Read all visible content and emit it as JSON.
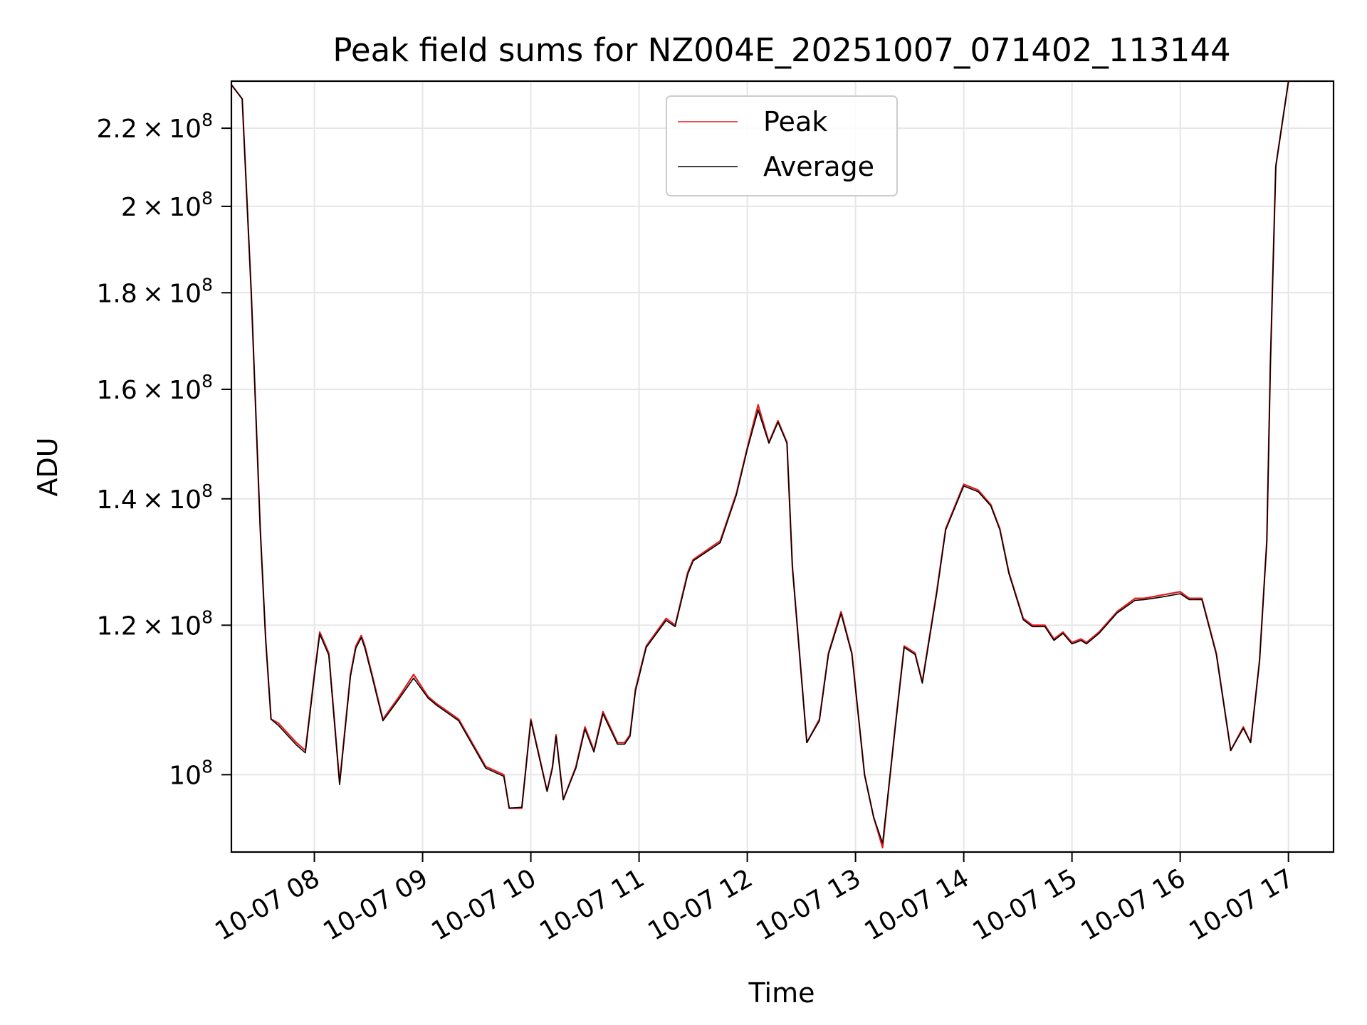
{
  "chart_data": {
    "type": "line",
    "title": "Peak field sums for NZ004E_20251007_071402_113144",
    "xlabel": "Time",
    "ylabel": "ADU",
    "yscale": "log",
    "grid": true,
    "legend_position": "upper center",
    "xlim": [
      "10-07 07:14",
      "10-07 17:25"
    ],
    "ylim": [
      91000000,
      233000000
    ],
    "x_ticks": [
      "10-07 08",
      "10-07 09",
      "10-07 10",
      "10-07 11",
      "10-07 12",
      "10-07 13",
      "10-07 14",
      "10-07 15",
      "10-07 16",
      "10-07 17"
    ],
    "y_ticks": [
      {
        "value": 100000000,
        "mantissa": "",
        "exponent": "8"
      },
      {
        "value": 120000000,
        "mantissa": "1.2",
        "exponent": "8"
      },
      {
        "value": 140000000,
        "mantissa": "1.4",
        "exponent": "8"
      },
      {
        "value": 160000000,
        "mantissa": "1.6",
        "exponent": "8"
      },
      {
        "value": 180000000,
        "mantissa": "1.8",
        "exponent": "8"
      },
      {
        "value": 200000000,
        "mantissa": "2",
        "exponent": "8"
      },
      {
        "value": 220000000,
        "mantissa": "2.2",
        "exponent": "8"
      }
    ],
    "colors": {
      "peak": "#e41a1c",
      "average": "#000000",
      "grid": "#e6e6e6"
    },
    "series": [
      {
        "name": "Peak",
        "color": "#e41a1c",
        "x": [
          "10-07 07:14",
          "10-07 07:20",
          "10-07 07:25",
          "10-07 07:30",
          "10-07 07:33",
          "10-07 07:36",
          "10-07 07:40",
          "10-07 07:50",
          "10-07 07:55",
          "10-07 08:00",
          "10-07 08:03",
          "10-07 08:08",
          "10-07 08:14",
          "10-07 08:20",
          "10-07 08:23",
          "10-07 08:25",
          "10-07 08:26",
          "10-07 08:28",
          "10-07 08:32",
          "10-07 08:38",
          "10-07 08:47",
          "10-07 08:55",
          "10-07 09:03",
          "10-07 09:08",
          "10-07 09:20",
          "10-07 09:35",
          "10-07 09:45",
          "10-07 09:48",
          "10-07 09:55",
          "10-07 10:00",
          "10-07 10:05",
          "10-07 10:09",
          "10-07 10:12",
          "10-07 10:14",
          "10-07 10:18",
          "10-07 10:25",
          "10-07 10:30",
          "10-07 10:35",
          "10-07 10:40",
          "10-07 10:48",
          "10-07 10:52",
          "10-07 10:55",
          "10-07 10:58",
          "10-07 11:04",
          "10-07 11:15",
          "10-07 11:20",
          "10-07 11:27",
          "10-07 11:30",
          "10-07 11:45",
          "10-07 11:54",
          "10-07 12:00",
          "10-07 12:06",
          "10-07 12:12",
          "10-07 12:17",
          "10-07 12:22",
          "10-07 12:25",
          "10-07 12:33",
          "10-07 12:40",
          "10-07 12:45",
          "10-07 12:52",
          "10-07 12:58",
          "10-07 13:05",
          "10-07 13:10",
          "10-07 13:15",
          "10-07 13:22",
          "10-07 13:27",
          "10-07 13:33",
          "10-07 13:37",
          "10-07 13:45",
          "10-07 13:50",
          "10-07 14:00",
          "10-07 14:08",
          "10-07 14:15",
          "10-07 14:20",
          "10-07 14:25",
          "10-07 14:33",
          "10-07 14:38",
          "10-07 14:45",
          "10-07 14:50",
          "10-07 14:55",
          "10-07 15:00",
          "10-07 15:05",
          "10-07 15:08",
          "10-07 15:15",
          "10-07 15:25",
          "10-07 15:35",
          "10-07 15:40",
          "10-07 15:50",
          "10-07 16:00",
          "10-07 16:05",
          "10-07 16:12",
          "10-07 16:20",
          "10-07 16:28",
          "10-07 16:35",
          "10-07 16:39",
          "10-07 16:44",
          "10-07 16:48",
          "10-07 16:50",
          "10-07 16:53",
          "10-07 17:00",
          "10-07 17:05"
        ],
        "values": [
          232000000,
          228000000,
          180000000,
          135000000,
          118000000,
          107000000,
          106500000,
          104000000,
          103000000,
          113000000,
          119000000,
          116000000,
          99000000,
          113000000,
          117000000,
          118000000,
          118500000,
          117000000,
          113000000,
          107000000,
          110000000,
          113000000,
          110000000,
          109000000,
          107000000,
          101000000,
          100000000,
          96000000,
          96000000,
          107000000,
          102000000,
          98000000,
          101000000,
          105000000,
          97000000,
          101000000,
          106000000,
          103000000,
          108000000,
          104000000,
          104000000,
          105000000,
          111000000,
          117000000,
          121000000,
          120000000,
          128000000,
          130000000,
          133000000,
          141000000,
          149000000,
          157000000,
          150000000,
          154000000,
          150000000,
          129000000,
          104000000,
          107000000,
          116000000,
          122000000,
          116000000,
          100000000,
          95000000,
          91500000,
          106000000,
          117000000,
          116000000,
          112000000,
          125000000,
          135000000,
          142500000,
          141500000,
          139000000,
          135000000,
          128000000,
          121000000,
          120000000,
          120000000,
          118000000,
          119000000,
          117500000,
          118000000,
          117500000,
          119000000,
          122000000,
          124000000,
          124000000,
          124500000,
          125000000,
          124000000,
          124000000,
          116000000,
          103000000,
          106000000,
          104000000,
          115000000,
          133000000,
          165000000,
          210000000,
          233000000,
          233000000
        ]
      },
      {
        "name": "Average",
        "color": "#000000",
        "x": [
          "10-07 07:14",
          "10-07 07:20",
          "10-07 07:25",
          "10-07 07:30",
          "10-07 07:33",
          "10-07 07:36",
          "10-07 07:40",
          "10-07 07:50",
          "10-07 07:55",
          "10-07 08:00",
          "10-07 08:03",
          "10-07 08:08",
          "10-07 08:14",
          "10-07 08:20",
          "10-07 08:23",
          "10-07 08:25",
          "10-07 08:26",
          "10-07 08:28",
          "10-07 08:32",
          "10-07 08:38",
          "10-07 08:47",
          "10-07 08:55",
          "10-07 09:03",
          "10-07 09:08",
          "10-07 09:20",
          "10-07 09:35",
          "10-07 09:45",
          "10-07 09:48",
          "10-07 09:55",
          "10-07 10:00",
          "10-07 10:05",
          "10-07 10:09",
          "10-07 10:12",
          "10-07 10:14",
          "10-07 10:18",
          "10-07 10:25",
          "10-07 10:30",
          "10-07 10:35",
          "10-07 10:40",
          "10-07 10:48",
          "10-07 10:52",
          "10-07 10:55",
          "10-07 10:58",
          "10-07 11:04",
          "10-07 11:15",
          "10-07 11:20",
          "10-07 11:27",
          "10-07 11:30",
          "10-07 11:45",
          "10-07 11:54",
          "10-07 12:00",
          "10-07 12:06",
          "10-07 12:12",
          "10-07 12:17",
          "10-07 12:22",
          "10-07 12:25",
          "10-07 12:33",
          "10-07 12:40",
          "10-07 12:45",
          "10-07 12:52",
          "10-07 12:58",
          "10-07 13:05",
          "10-07 13:10",
          "10-07 13:15",
          "10-07 13:22",
          "10-07 13:27",
          "10-07 13:33",
          "10-07 13:37",
          "10-07 13:45",
          "10-07 13:50",
          "10-07 14:00",
          "10-07 14:08",
          "10-07 14:15",
          "10-07 14:20",
          "10-07 14:25",
          "10-07 14:33",
          "10-07 14:38",
          "10-07 14:45",
          "10-07 14:50",
          "10-07 14:55",
          "10-07 15:00",
          "10-07 15:05",
          "10-07 15:08",
          "10-07 15:15",
          "10-07 15:25",
          "10-07 15:35",
          "10-07 15:40",
          "10-07 15:50",
          "10-07 16:00",
          "10-07 16:05",
          "10-07 16:12",
          "10-07 16:20",
          "10-07 16:28",
          "10-07 16:35",
          "10-07 16:39",
          "10-07 16:44",
          "10-07 16:48",
          "10-07 16:50",
          "10-07 16:53",
          "10-07 17:00",
          "10-07 17:05"
        ],
        "values": [
          232000000,
          228000000,
          180000000,
          135000000,
          118000000,
          107000000,
          106200000,
          103700000,
          102700000,
          112700000,
          118700000,
          115700000,
          98800000,
          112700000,
          116700000,
          117700000,
          118200000,
          116700000,
          112700000,
          106800000,
          109700000,
          112500000,
          109800000,
          108800000,
          106800000,
          100800000,
          99800000,
          96000000,
          96100000,
          106800000,
          101800000,
          98000000,
          100800000,
          104800000,
          97000000,
          100800000,
          105700000,
          102800000,
          107700000,
          103800000,
          103800000,
          104800000,
          110700000,
          116800000,
          120700000,
          119800000,
          127700000,
          129800000,
          132700000,
          140700000,
          148700000,
          156000000,
          149800000,
          153700000,
          149800000,
          128800000,
          104000000,
          106800000,
          115800000,
          121700000,
          115800000,
          100000000,
          95000000,
          92000000,
          105800000,
          116800000,
          115800000,
          111800000,
          124700000,
          134800000,
          142200000,
          141200000,
          138800000,
          134800000,
          127800000,
          120800000,
          119800000,
          119800000,
          117800000,
          118800000,
          117300000,
          117800000,
          117300000,
          118800000,
          121800000,
          123700000,
          123800000,
          124200000,
          124700000,
          123800000,
          123800000,
          115800000,
          103000000,
          105800000,
          104000000,
          114800000,
          133000000,
          165000000,
          210000000,
          233000000,
          233000000
        ]
      }
    ]
  }
}
